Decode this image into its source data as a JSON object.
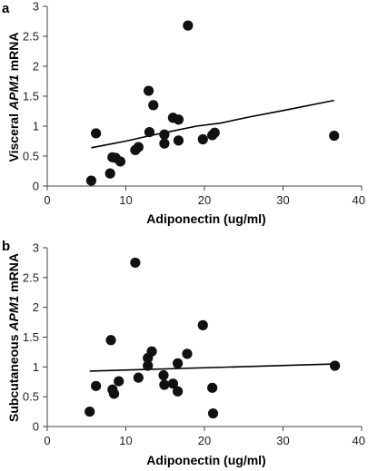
{
  "chart_data": [
    {
      "type": "scatter",
      "panel": "a",
      "xlabel": "Adiponectin (ug/ml)",
      "ylabel": {
        "pre": "Visceral ",
        "italic": "APM1",
        "post": " mRNA"
      },
      "xlim": [
        0,
        40
      ],
      "ylim": [
        0,
        3
      ],
      "xticks": [
        "0",
        "10",
        "20",
        "30",
        "40"
      ],
      "yticks": [
        "0",
        "0.5",
        "1",
        "1.5",
        "2",
        "2.5",
        "3"
      ],
      "grid": false,
      "points": [
        {
          "x": 5.6,
          "y": 0.09
        },
        {
          "x": 6.2,
          "y": 0.88
        },
        {
          "x": 8.0,
          "y": 0.21
        },
        {
          "x": 8.3,
          "y": 0.48
        },
        {
          "x": 8.7,
          "y": 0.47
        },
        {
          "x": 9.3,
          "y": 0.41
        },
        {
          "x": 11.2,
          "y": 0.6
        },
        {
          "x": 11.6,
          "y": 0.65
        },
        {
          "x": 12.9,
          "y": 1.59
        },
        {
          "x": 13.0,
          "y": 0.9
        },
        {
          "x": 13.5,
          "y": 1.35
        },
        {
          "x": 14.9,
          "y": 0.86
        },
        {
          "x": 14.9,
          "y": 0.71
        },
        {
          "x": 16.0,
          "y": 1.14
        },
        {
          "x": 16.7,
          "y": 1.11
        },
        {
          "x": 16.7,
          "y": 0.76
        },
        {
          "x": 17.9,
          "y": 2.68
        },
        {
          "x": 19.8,
          "y": 0.78
        },
        {
          "x": 21.0,
          "y": 0.85
        },
        {
          "x": 21.3,
          "y": 0.89
        },
        {
          "x": 36.5,
          "y": 0.84
        }
      ],
      "trend": [
        {
          "x": 5.6,
          "y": 0.64
        },
        {
          "x": 8,
          "y": 0.7
        },
        {
          "x": 10,
          "y": 0.75
        },
        {
          "x": 13,
          "y": 0.84
        },
        {
          "x": 16,
          "y": 0.92
        },
        {
          "x": 19,
          "y": 1.0
        },
        {
          "x": 22,
          "y": 1.05
        },
        {
          "x": 26,
          "y": 1.16
        },
        {
          "x": 30,
          "y": 1.26
        },
        {
          "x": 36.5,
          "y": 1.43
        }
      ]
    },
    {
      "type": "scatter",
      "panel": "b",
      "xlabel": "Adiponectin (ug/ml)",
      "ylabel": {
        "pre": "Subcutaneous ",
        "italic": "APM1",
        "post": " mRNA"
      },
      "xlim": [
        0,
        40
      ],
      "ylim": [
        0,
        3
      ],
      "xticks": [
        "0",
        "10",
        "20",
        "30",
        "40"
      ],
      "yticks": [
        "0",
        "0.5",
        "1",
        "1.5",
        "2",
        "2.5",
        "3"
      ],
      "grid": false,
      "points": [
        {
          "x": 5.4,
          "y": 0.25
        },
        {
          "x": 6.2,
          "y": 0.68
        },
        {
          "x": 8.1,
          "y": 1.45
        },
        {
          "x": 8.3,
          "y": 0.62
        },
        {
          "x": 8.5,
          "y": 0.55
        },
        {
          "x": 9.1,
          "y": 0.76
        },
        {
          "x": 11.2,
          "y": 2.75
        },
        {
          "x": 11.6,
          "y": 0.82
        },
        {
          "x": 12.8,
          "y": 1.15
        },
        {
          "x": 12.8,
          "y": 1.02
        },
        {
          "x": 13.3,
          "y": 1.26
        },
        {
          "x": 14.8,
          "y": 0.86
        },
        {
          "x": 14.9,
          "y": 0.7
        },
        {
          "x": 16.0,
          "y": 0.72
        },
        {
          "x": 16.6,
          "y": 1.06
        },
        {
          "x": 16.6,
          "y": 0.59
        },
        {
          "x": 17.8,
          "y": 1.22
        },
        {
          "x": 19.8,
          "y": 1.7
        },
        {
          "x": 21.0,
          "y": 0.65
        },
        {
          "x": 21.1,
          "y": 0.22
        },
        {
          "x": 36.6,
          "y": 1.02
        }
      ],
      "trend": [
        {
          "x": 5.4,
          "y": 0.93
        },
        {
          "x": 36.6,
          "y": 1.05
        }
      ]
    }
  ]
}
